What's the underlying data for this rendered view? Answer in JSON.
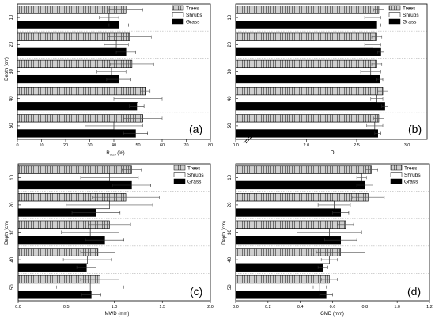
{
  "figure": {
    "panels": [
      {
        "letter": "(a)",
        "xlabel": "R",
        "xlabel_sub": "0.25",
        "xlabel_unit": " (%)",
        "ylabel": "Depth (cm)"
      },
      {
        "letter": "(b)",
        "xlabel": "D",
        "xlabel_sub": "",
        "xlabel_unit": "",
        "ylabel": ""
      },
      {
        "letter": "(c)",
        "xlabel": "MWD (mm)",
        "xlabel_sub": "",
        "xlabel_unit": "",
        "ylabel": "Depth (cm)"
      },
      {
        "letter": "(d)",
        "xlabel": "GMD (mm)",
        "xlabel_sub": "",
        "xlabel_unit": "",
        "ylabel": "Depth (cm)"
      }
    ],
    "legend": [
      "Trees",
      "Shrubs",
      "Grass"
    ],
    "colors": {
      "trees_fill": "#cfcfcf",
      "shrubs_fill": "#ffffff",
      "grass_fill": "#000000",
      "axis": "#000000",
      "separator": "#b5b5b5"
    }
  },
  "chart_data": [
    {
      "type": "bar",
      "orientation": "horizontal",
      "title": "",
      "xlabel": "R0.25 (%)",
      "ylabel": "Depth (cm)",
      "categories": [
        "10",
        "20",
        "30",
        "40",
        "50"
      ],
      "xlim": [
        0,
        80
      ],
      "xticks": [
        "0",
        "10",
        "20",
        "30",
        "40",
        "50",
        "60",
        "70",
        "80"
      ],
      "series": [
        {
          "name": "Trees",
          "values": [
            45,
            46.5,
            47.5,
            53,
            52
          ],
          "errors": [
            7,
            9,
            9,
            2,
            8
          ]
        },
        {
          "name": "Shrubs",
          "values": [
            38,
            41,
            39,
            50,
            40
          ],
          "errors": [
            4,
            5,
            6,
            10,
            12
          ]
        },
        {
          "name": "Grass",
          "values": [
            42,
            45,
            42,
            49.5,
            49
          ],
          "errors": [
            4,
            4,
            5,
            3,
            5
          ]
        }
      ]
    },
    {
      "type": "bar",
      "orientation": "horizontal",
      "title": "",
      "xlabel": "D",
      "ylabel": "",
      "categories": [
        "10",
        "20",
        "30",
        "40",
        "50"
      ],
      "xlim": [
        0,
        3.2
      ],
      "axis_break": [
        0.1,
        1.4
      ],
      "xticks": [
        "0.0",
        "2.0",
        "2.5",
        "3.0"
      ],
      "series": [
        {
          "name": "Trees",
          "values": [
            2.72,
            2.7,
            2.7,
            2.76,
            2.72
          ],
          "errors": [
            0.05,
            0.05,
            0.05,
            0.05,
            0.05
          ]
        },
        {
          "name": "Shrubs",
          "values": [
            2.66,
            2.66,
            2.64,
            2.7,
            2.68
          ],
          "errors": [
            0.08,
            0.08,
            0.1,
            0.06,
            0.08
          ]
        },
        {
          "name": "Grass",
          "values": [
            2.7,
            2.74,
            2.73,
            2.78,
            2.71
          ],
          "errors": [
            0.04,
            0.03,
            0.03,
            0.03,
            0.03
          ]
        }
      ]
    },
    {
      "type": "bar",
      "orientation": "horizontal",
      "title": "",
      "xlabel": "MWD (mm)",
      "ylabel": "Depth (cm)",
      "categories": [
        "10",
        "20",
        "30",
        "40",
        "50"
      ],
      "xlim": [
        0,
        2.0
      ],
      "xticks": [
        "0.0",
        "0.5",
        "1.0",
        "1.5",
        "2.0"
      ],
      "series": [
        {
          "name": "Trees",
          "values": [
            1.18,
            1.12,
            0.95,
            0.83,
            0.85
          ],
          "errors": [
            0.1,
            0.35,
            0.22,
            0.18,
            0.2
          ]
        },
        {
          "name": "Shrubs",
          "values": [
            0.95,
            0.95,
            0.75,
            0.72,
            0.75
          ],
          "errors": [
            0.3,
            0.45,
            0.3,
            0.25,
            0.35
          ]
        },
        {
          "name": "Grass",
          "values": [
            1.18,
            0.81,
            0.9,
            0.71,
            0.76
          ],
          "errors": [
            0.2,
            0.25,
            0.2,
            0.1,
            0.1
          ]
        }
      ]
    },
    {
      "type": "bar",
      "orientation": "horizontal",
      "title": "",
      "xlabel": "GMD (mm)",
      "ylabel": "Depth (cm)",
      "categories": [
        "10",
        "20",
        "30",
        "40",
        "50"
      ],
      "xlim": [
        0,
        1.2
      ],
      "xticks": [
        "0.0",
        "0.2",
        "0.4",
        "0.6",
        "0.8",
        "1.0",
        "1.2"
      ],
      "series": [
        {
          "name": "Trees",
          "values": [
            0.84,
            0.82,
            0.68,
            0.65,
            0.58
          ],
          "errors": [
            0.04,
            0.1,
            0.05,
            0.15,
            0.05
          ]
        },
        {
          "name": "Shrubs",
          "values": [
            0.78,
            0.61,
            0.58,
            0.58,
            0.52
          ],
          "errors": [
            0.03,
            0.1,
            0.2,
            0.05,
            0.04
          ]
        },
        {
          "name": "Grass",
          "values": [
            0.8,
            0.65,
            0.65,
            0.54,
            0.56
          ],
          "errors": [
            0.05,
            0.05,
            0.1,
            0.03,
            0.04
          ]
        }
      ]
    }
  ]
}
